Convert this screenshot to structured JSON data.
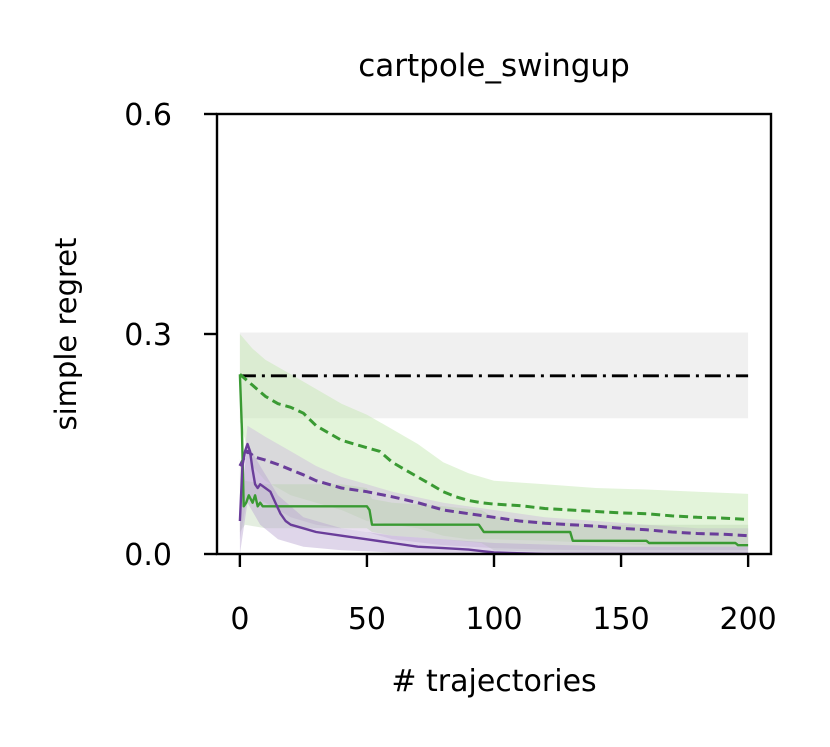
{
  "chart_data": {
    "type": "line",
    "title": "cartpole_swingup",
    "xlabel": "# trajectories",
    "ylabel": "simple regret",
    "xlim": [
      -9,
      209
    ],
    "ylim": [
      0,
      0.6
    ],
    "xticks": [
      0,
      50,
      100,
      150,
      200
    ],
    "xtick_labels": [
      "0",
      "50",
      "100",
      "150",
      "200"
    ],
    "yticks": [
      0.0,
      0.3,
      0.6
    ],
    "ytick_labels": [
      "0.0",
      "0.3",
      "0.6"
    ],
    "grid": false,
    "legend": "none",
    "bands": [
      {
        "color": "#d9d9d9",
        "opacity": 0.4,
        "x": [
          0,
          200
        ],
        "lower": [
          0.185,
          0.185
        ],
        "upper": [
          0.302,
          0.302
        ]
      },
      {
        "color": "#c2e6ad",
        "opacity": 0.45,
        "x": [
          0,
          5,
          10,
          20,
          30,
          40,
          50,
          60,
          70,
          80,
          90,
          100,
          120,
          140,
          160,
          180,
          200
        ],
        "lower": [
          0.18,
          0.12,
          0.1,
          0.08,
          0.07,
          0.06,
          0.045,
          0.04,
          0.035,
          0.025,
          0.02,
          0.02,
          0.018,
          0.015,
          0.012,
          0.01,
          0.01
        ],
        "upper": [
          0.3,
          0.28,
          0.265,
          0.245,
          0.225,
          0.205,
          0.19,
          0.17,
          0.15,
          0.125,
          0.11,
          0.1,
          0.095,
          0.09,
          0.088,
          0.085,
          0.082
        ]
      },
      {
        "color": "#cbb8dc",
        "opacity": 0.45,
        "x": [
          0,
          3,
          10,
          20,
          30,
          40,
          50,
          60,
          80,
          100,
          120,
          140,
          160,
          180,
          200
        ],
        "lower": [
          0.02,
          0.08,
          0.07,
          0.05,
          0.04,
          0.035,
          0.03,
          0.02,
          0.012,
          0.008,
          0.006,
          0.005,
          0.005,
          0.005,
          0.005
        ],
        "upper": [
          0.08,
          0.175,
          0.16,
          0.14,
          0.12,
          0.105,
          0.095,
          0.085,
          0.07,
          0.06,
          0.05,
          0.045,
          0.04,
          0.035,
          0.035
        ]
      },
      {
        "color": "#b1cfa5",
        "opacity": 0.35,
        "x": [
          0,
          2,
          10,
          20,
          30,
          40,
          50,
          52,
          60,
          80,
          95,
          100,
          120,
          140,
          160,
          180,
          200
        ],
        "lower": [
          0.03,
          0.04,
          0.035,
          0.035,
          0.035,
          0.035,
          0.035,
          0.03,
          0.025,
          0.02,
          0.015,
          0.005,
          0.003,
          0.002,
          0.002,
          0.002,
          0.002
        ],
        "upper": [
          0.13,
          0.1,
          0.095,
          0.095,
          0.095,
          0.095,
          0.09,
          0.075,
          0.07,
          0.065,
          0.06,
          0.05,
          0.045,
          0.04,
          0.04,
          0.04,
          0.04
        ]
      },
      {
        "color": "#b9a3d0",
        "opacity": 0.45,
        "x": [
          0,
          3,
          8,
          15,
          25,
          40,
          60,
          80,
          100,
          150,
          200
        ],
        "lower": [
          0.0,
          0.07,
          0.04,
          0.02,
          0.01,
          0.005,
          0.002,
          0.0,
          0.0,
          0.0,
          0.0
        ],
        "upper": [
          0.06,
          0.15,
          0.12,
          0.08,
          0.05,
          0.035,
          0.025,
          0.02,
          0.015,
          0.01,
          0.01
        ]
      }
    ],
    "series": [
      {
        "color": "#000000",
        "dash": "dashdot",
        "width": 2.8,
        "x": [
          0,
          200
        ],
        "y": [
          0.243,
          0.243
        ]
      },
      {
        "color": "#3a9a33",
        "dash": "dashed",
        "width": 3,
        "x": [
          0,
          5,
          10,
          15,
          20,
          25,
          30,
          35,
          40,
          45,
          50,
          55,
          60,
          65,
          70,
          75,
          80,
          85,
          90,
          95,
          100,
          110,
          120,
          130,
          140,
          150,
          160,
          170,
          180,
          190,
          200
        ],
        "y": [
          0.245,
          0.23,
          0.215,
          0.205,
          0.2,
          0.192,
          0.175,
          0.165,
          0.155,
          0.15,
          0.145,
          0.14,
          0.125,
          0.115,
          0.105,
          0.095,
          0.085,
          0.078,
          0.073,
          0.07,
          0.068,
          0.066,
          0.062,
          0.06,
          0.058,
          0.056,
          0.055,
          0.052,
          0.05,
          0.049,
          0.047
        ]
      },
      {
        "color": "#6a3d9a",
        "dash": "dashed",
        "width": 3,
        "x": [
          0,
          3,
          6,
          10,
          15,
          20,
          25,
          30,
          40,
          50,
          60,
          70,
          80,
          90,
          100,
          110,
          120,
          130,
          140,
          150,
          160,
          170,
          180,
          190,
          200
        ],
        "y": [
          0.12,
          0.14,
          0.132,
          0.128,
          0.122,
          0.115,
          0.108,
          0.1,
          0.09,
          0.085,
          0.078,
          0.07,
          0.06,
          0.055,
          0.05,
          0.045,
          0.042,
          0.04,
          0.038,
          0.035,
          0.033,
          0.03,
          0.028,
          0.027,
          0.025
        ]
      },
      {
        "color": "#3a9a33",
        "dash": "solid",
        "width": 2.4,
        "x": [
          0,
          0.8,
          1.5,
          2.5,
          3.5,
          5,
          6,
          7,
          8,
          9,
          10,
          50,
          51,
          52,
          53,
          94,
          95,
          96,
          97,
          130,
          131,
          132,
          160,
          161,
          195,
          196,
          200
        ],
        "y": [
          0.245,
          0.17,
          0.065,
          0.07,
          0.08,
          0.07,
          0.08,
          0.065,
          0.07,
          0.065,
          0.065,
          0.065,
          0.06,
          0.04,
          0.04,
          0.04,
          0.035,
          0.03,
          0.03,
          0.03,
          0.018,
          0.018,
          0.018,
          0.015,
          0.015,
          0.012,
          0.012
        ]
      },
      {
        "color": "#6a3d9a",
        "dash": "solid",
        "width": 2.4,
        "x": [
          0,
          1,
          2,
          3,
          4,
          5,
          6,
          7,
          8,
          10,
          12,
          14,
          16,
          18,
          20,
          25,
          30,
          40,
          50,
          60,
          70,
          80,
          90,
          95,
          100,
          120,
          150,
          200
        ],
        "y": [
          0.045,
          0.12,
          0.14,
          0.15,
          0.14,
          0.115,
          0.095,
          0.09,
          0.095,
          0.09,
          0.085,
          0.07,
          0.055,
          0.045,
          0.04,
          0.035,
          0.03,
          0.025,
          0.02,
          0.015,
          0.01,
          0.008,
          0.006,
          0.004,
          0.002,
          0.0,
          0.0,
          0.0
        ]
      }
    ]
  }
}
